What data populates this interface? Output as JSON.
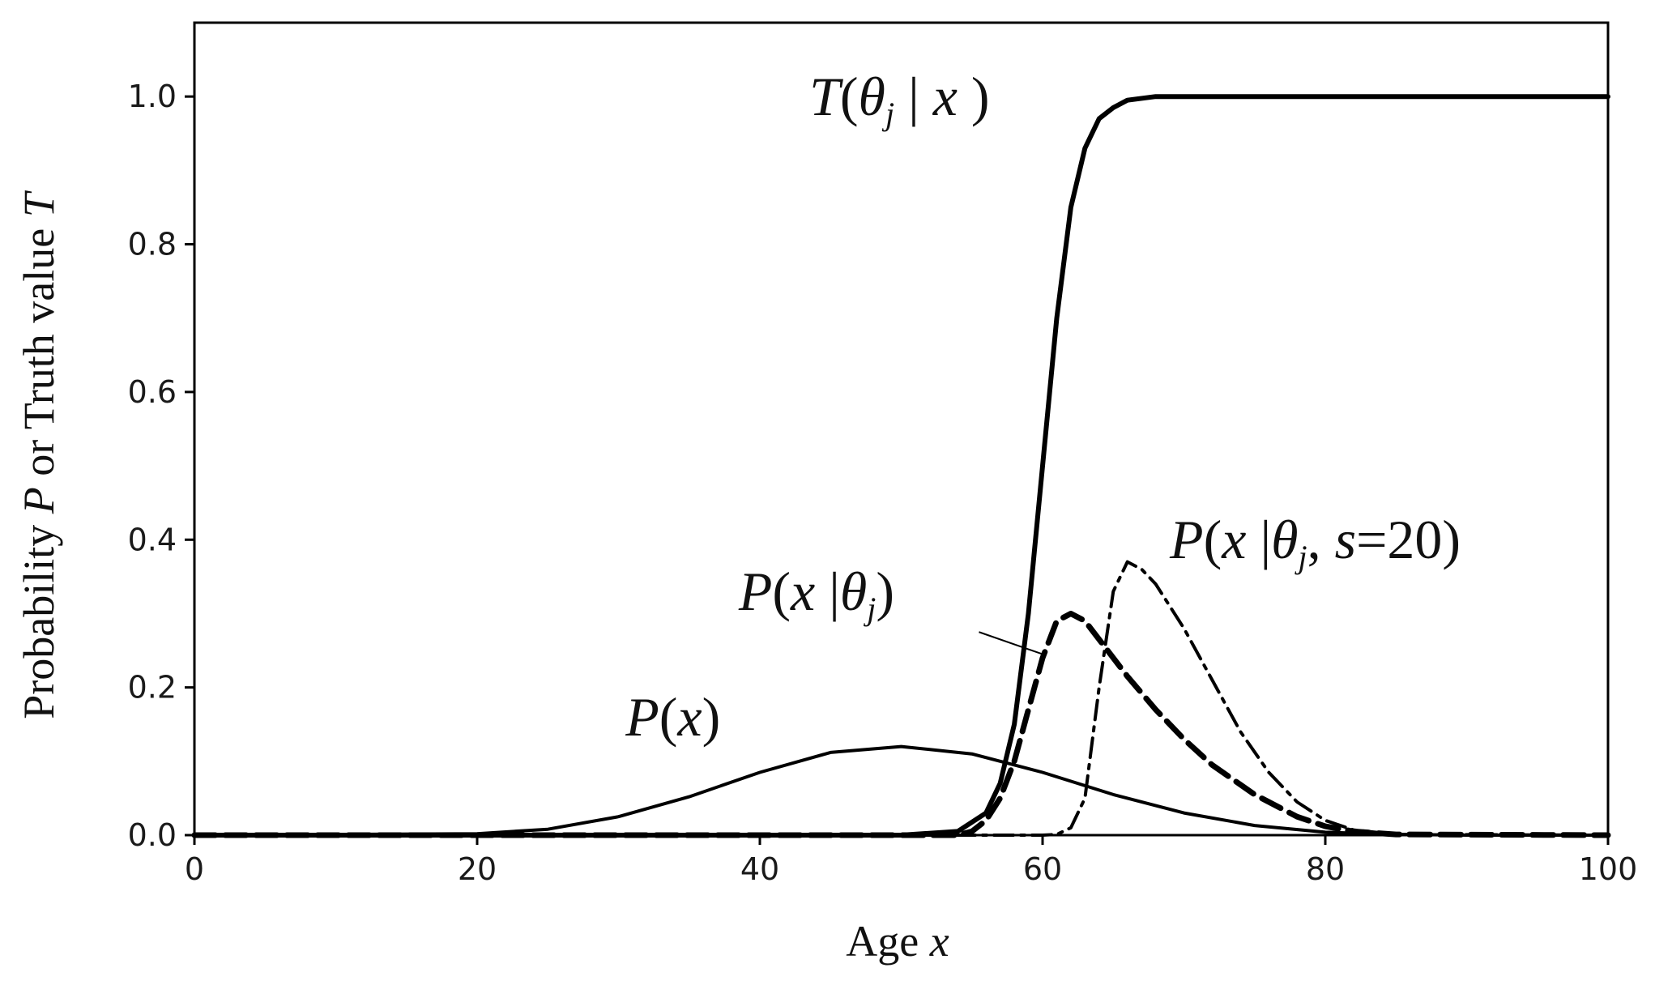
{
  "chart_data": {
    "type": "line",
    "xlabel": {
      "prefix": "Age ",
      "var": "x"
    },
    "ylabel": {
      "p1": "Probability ",
      "v1": "P",
      "p2": " or Truth value ",
      "v2": "T"
    },
    "xlim": [
      0,
      100
    ],
    "ylim": [
      0,
      1.1
    ],
    "x_ticks": [
      0,
      20,
      40,
      60,
      80,
      100
    ],
    "x_tick_labels": [
      "0",
      "20",
      "40",
      "60",
      "80",
      "100"
    ],
    "y_ticks": [
      0,
      0.2,
      0.4,
      0.6,
      0.8,
      1.0
    ],
    "y_tick_labels": [
      "0.0",
      "0.2",
      "0.4",
      "0.6",
      "0.8",
      "1.0"
    ],
    "grid": false,
    "legend": "none",
    "colors": {
      "line": "#000000",
      "ylabel": "#1a5276",
      "axis": "#000000"
    },
    "series": [
      {
        "name": "P(x)",
        "style": "solid-thin",
        "x": [
          0,
          20,
          25,
          30,
          35,
          40,
          45,
          50,
          55,
          60,
          65,
          70,
          75,
          80,
          85,
          90,
          100
        ],
        "y": [
          0,
          0.002,
          0.008,
          0.025,
          0.052,
          0.085,
          0.112,
          0.12,
          0.11,
          0.085,
          0.055,
          0.03,
          0.013,
          0.004,
          0.001,
          0,
          0
        ]
      },
      {
        "name": "T(θj | x)",
        "style": "solid-thick",
        "x": [
          0,
          50,
          54,
          56,
          57,
          58,
          59,
          60,
          61,
          62,
          63,
          64,
          65,
          66,
          68,
          70,
          100
        ],
        "y": [
          0,
          0,
          0.005,
          0.03,
          0.07,
          0.15,
          0.3,
          0.5,
          0.7,
          0.85,
          0.93,
          0.97,
          0.985,
          0.995,
          1.0,
          1.0,
          1.0
        ]
      },
      {
        "name": "P(x|θj)",
        "style": "dashed",
        "x": [
          0,
          54,
          55,
          56,
          57,
          58,
          59,
          60,
          61,
          62,
          63,
          64,
          65,
          66,
          68,
          70,
          72,
          75,
          78,
          80,
          82,
          85,
          100
        ],
        "y": [
          0,
          0,
          0.005,
          0.02,
          0.05,
          0.1,
          0.17,
          0.24,
          0.29,
          0.3,
          0.29,
          0.265,
          0.24,
          0.215,
          0.17,
          0.13,
          0.095,
          0.055,
          0.025,
          0.012,
          0.005,
          0.001,
          0
        ]
      },
      {
        "name": "P(x|θj, s=20)",
        "style": "dash-dot",
        "x": [
          0,
          60,
          61,
          62,
          63,
          64,
          65,
          66,
          67,
          68,
          70,
          72,
          74,
          76,
          78,
          80,
          82,
          85,
          100
        ],
        "y": [
          0,
          0,
          0.001,
          0.01,
          0.05,
          0.2,
          0.33,
          0.37,
          0.36,
          0.34,
          0.28,
          0.21,
          0.14,
          0.085,
          0.045,
          0.02,
          0.007,
          0.001,
          0
        ]
      }
    ],
    "annotations": [
      {
        "id": "Tcurve",
        "at_x": 43.5,
        "at_y": 0.975,
        "parts": [
          [
            "T",
            "i"
          ],
          [
            "(",
            "n"
          ],
          [
            "θ",
            "i"
          ],
          [
            "j",
            "sub"
          ],
          [
            " | ",
            "n"
          ],
          [
            "x",
            "i"
          ],
          [
            " )",
            "n"
          ]
        ]
      },
      {
        "id": "Pxthetas",
        "at_x": 69.0,
        "at_y": 0.375,
        "parts": [
          [
            "P",
            "i"
          ],
          [
            "(",
            "n"
          ],
          [
            "x",
            "i"
          ],
          [
            " |",
            "n"
          ],
          [
            "θ",
            "i"
          ],
          [
            "j",
            "sub"
          ],
          [
            ", ",
            "n"
          ],
          [
            "s",
            "i"
          ],
          [
            "=20)",
            "n"
          ]
        ]
      },
      {
        "id": "Pxtheta",
        "at_x": 38.5,
        "at_y": 0.305,
        "parts": [
          [
            "P",
            "i"
          ],
          [
            "(",
            "n"
          ],
          [
            "x",
            "i"
          ],
          [
            " |",
            "n"
          ],
          [
            "θ",
            "i"
          ],
          [
            "j",
            "sub"
          ],
          [
            ")",
            "n"
          ]
        ]
      },
      {
        "id": "Px",
        "at_x": 30.5,
        "at_y": 0.135,
        "parts": [
          [
            "P",
            "i"
          ],
          [
            "(",
            "n"
          ],
          [
            "x",
            "i"
          ],
          [
            ")",
            "n"
          ]
        ]
      }
    ],
    "pointer": {
      "from": [
        55.5,
        0.275
      ],
      "to": [
        60.0,
        0.245
      ]
    }
  }
}
